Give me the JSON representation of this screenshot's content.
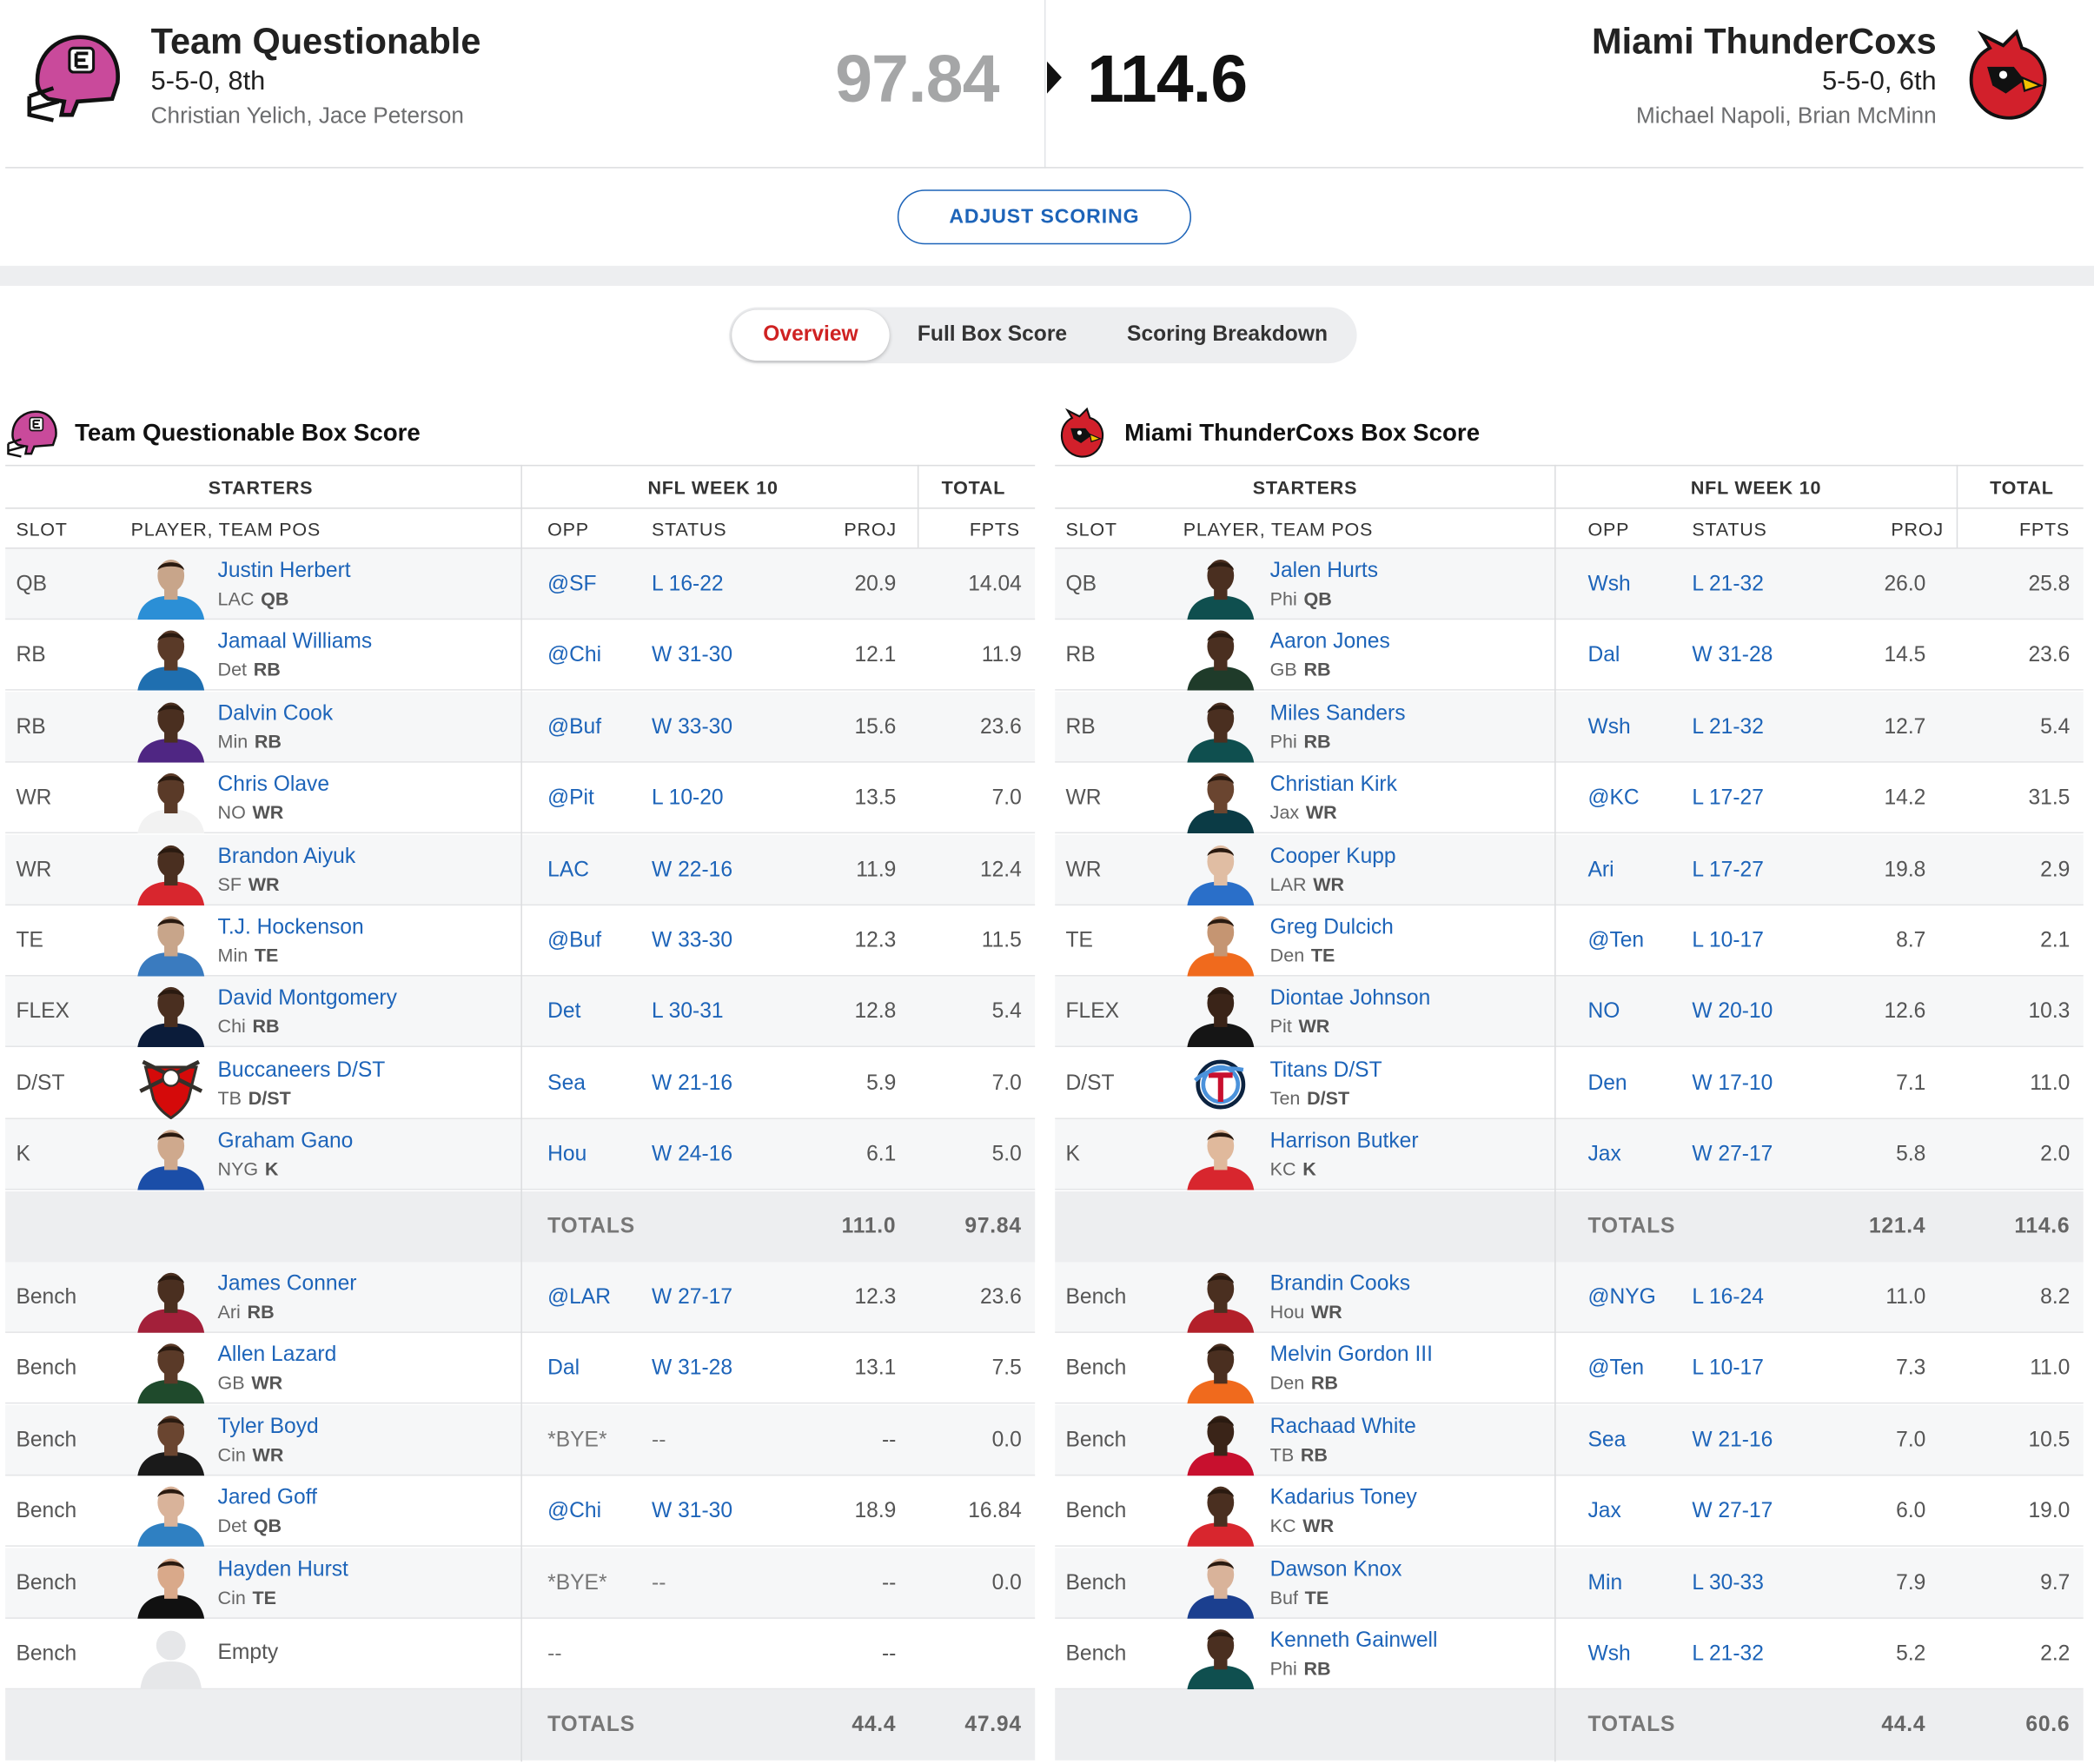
{
  "matchup": {
    "away": {
      "name": "Team Questionable",
      "record": "5-5-0, 8th",
      "owners": "Christian Yelich, Jace Peterson",
      "score": "97.84"
    },
    "home": {
      "name": "Miami ThunderCoxs",
      "record": "5-5-0, 6th",
      "owners": "Michael Napoli, Brian McMinn",
      "score": "114.6"
    },
    "adjust_label": "ADJUST SCORING"
  },
  "tabs": {
    "overview": "Overview",
    "full": "Full Box Score",
    "breakdown": "Scoring Breakdown"
  },
  "headers": {
    "starters": "STARTERS",
    "week": "NFL WEEK 10",
    "total": "TOTAL",
    "slot": "SLOT",
    "player": "PLAYER, TEAM POS",
    "opp": "OPP",
    "status": "STATUS",
    "proj": "PROJ",
    "fpts": "FPTS",
    "totals": "TOTALS"
  },
  "colors": {
    "link": "#1d64b9",
    "active_tab": "#cf2222",
    "away_helmet": "#c94a9b",
    "home_bird": "#d2202b"
  },
  "left": {
    "title": "Team Questionable Box Score",
    "starters": [
      {
        "slot": "QB",
        "name": "Justin Herbert",
        "team": "LAC",
        "pos": "QB",
        "opp": "@SF",
        "status": "L 16-22",
        "proj": "20.9",
        "fpts": "14.04",
        "skin": "#c8a58a",
        "jersey": "#2b8fd6"
      },
      {
        "slot": "RB",
        "name": "Jamaal Williams",
        "team": "Det",
        "pos": "RB",
        "opp": "@Chi",
        "status": "W 31-30",
        "proj": "12.1",
        "fpts": "11.9",
        "skin": "#5a3a28",
        "jersey": "#1f6fb0"
      },
      {
        "slot": "RB",
        "name": "Dalvin Cook",
        "team": "Min",
        "pos": "RB",
        "opp": "@Buf",
        "status": "W 33-30",
        "proj": "15.6",
        "fpts": "23.6",
        "skin": "#4a2f20",
        "jersey": "#4f2683"
      },
      {
        "slot": "WR",
        "name": "Chris Olave",
        "team": "NO",
        "pos": "WR",
        "opp": "@Pit",
        "status": "L 10-20",
        "proj": "13.5",
        "fpts": "7.0",
        "skin": "#5a3a28",
        "jersey": "#f2f2f2"
      },
      {
        "slot": "WR",
        "name": "Brandon Aiyuk",
        "team": "SF",
        "pos": "WR",
        "opp": "LAC",
        "status": "W 22-16",
        "proj": "11.9",
        "fpts": "12.4",
        "skin": "#4a2f20",
        "jersey": "#d8262e"
      },
      {
        "slot": "TE",
        "name": "T.J. Hockenson",
        "team": "Min",
        "pos": "TE",
        "opp": "@Buf",
        "status": "W 33-30",
        "proj": "12.3",
        "fpts": "11.5",
        "skin": "#c8a58a",
        "jersey": "#3a7bbf"
      },
      {
        "slot": "FLEX",
        "name": "David Montgomery",
        "team": "Chi",
        "pos": "RB",
        "opp": "Det",
        "status": "L 30-31",
        "proj": "12.8",
        "fpts": "5.4",
        "skin": "#4a2f20",
        "jersey": "#0b1c3a"
      },
      {
        "slot": "D/ST",
        "name": "Buccaneers D/ST",
        "team": "TB",
        "pos": "D/ST",
        "opp": "Sea",
        "status": "W 21-16",
        "proj": "5.9",
        "fpts": "7.0",
        "logo": "bucs"
      },
      {
        "slot": "K",
        "name": "Graham Gano",
        "team": "NYG",
        "pos": "K",
        "opp": "Hou",
        "status": "W 24-16",
        "proj": "6.1",
        "fpts": "5.0",
        "skin": "#cfa98d",
        "jersey": "#1b4ea8"
      }
    ],
    "starter_totals": {
      "proj": "111.0",
      "fpts": "97.84"
    },
    "bench": [
      {
        "slot": "Bench",
        "name": "James Conner",
        "team": "Ari",
        "pos": "RB",
        "opp": "@LAR",
        "status": "W 27-17",
        "proj": "12.3",
        "fpts": "23.6",
        "skin": "#4a2f20",
        "jersey": "#a3203a"
      },
      {
        "slot": "Bench",
        "name": "Allen Lazard",
        "team": "GB",
        "pos": "WR",
        "opp": "Dal",
        "status": "W 31-28",
        "proj": "13.1",
        "fpts": "7.5",
        "skin": "#5a3a28",
        "jersey": "#1f4a2c"
      },
      {
        "slot": "Bench",
        "name": "Tyler Boyd",
        "team": "Cin",
        "pos": "WR",
        "opp": "*BYE*",
        "status": "--",
        "proj": "--",
        "fpts": "0.0",
        "skin": "#6a4530",
        "jersey": "#1a1a1a",
        "plain": true
      },
      {
        "slot": "Bench",
        "name": "Jared Goff",
        "team": "Det",
        "pos": "QB",
        "opp": "@Chi",
        "status": "W 31-30",
        "proj": "18.9",
        "fpts": "16.84",
        "skin": "#d9b39a",
        "jersey": "#2f80c2"
      },
      {
        "slot": "Bench",
        "name": "Hayden Hurst",
        "team": "Cin",
        "pos": "TE",
        "opp": "*BYE*",
        "status": "--",
        "proj": "--",
        "fpts": "0.0",
        "skin": "#d9a98a",
        "jersey": "#111111",
        "plain": true
      },
      {
        "slot": "Bench",
        "name": "Empty",
        "team": "",
        "pos": "",
        "opp": "--",
        "status": "",
        "proj": "--",
        "fpts": "",
        "empty": true
      }
    ],
    "bench_totals": {
      "proj": "44.4",
      "fpts": "47.94"
    }
  },
  "right": {
    "title": "Miami ThunderCoxs Box Score",
    "starters": [
      {
        "slot": "QB",
        "name": "Jalen Hurts",
        "team": "Phi",
        "pos": "QB",
        "opp": "Wsh",
        "status": "L 21-32",
        "proj": "26.0",
        "fpts": "25.8",
        "skin": "#4a2f20",
        "jersey": "#0f4f4f"
      },
      {
        "slot": "RB",
        "name": "Aaron Jones",
        "team": "GB",
        "pos": "RB",
        "opp": "Dal",
        "status": "W 31-28",
        "proj": "14.5",
        "fpts": "23.6",
        "skin": "#4a2f20",
        "jersey": "#1f3b2a"
      },
      {
        "slot": "RB",
        "name": "Miles Sanders",
        "team": "Phi",
        "pos": "RB",
        "opp": "Wsh",
        "status": "L 21-32",
        "proj": "12.7",
        "fpts": "5.4",
        "skin": "#4a2f20",
        "jersey": "#0f4f4f"
      },
      {
        "slot": "WR",
        "name": "Christian Kirk",
        "team": "Jax",
        "pos": "WR",
        "opp": "@KC",
        "status": "L 17-27",
        "proj": "14.2",
        "fpts": "31.5",
        "skin": "#6a4530",
        "jersey": "#0b3b45"
      },
      {
        "slot": "WR",
        "name": "Cooper Kupp",
        "team": "LAR",
        "pos": "WR",
        "opp": "Ari",
        "status": "L 17-27",
        "proj": "19.8",
        "fpts": "2.9",
        "skin": "#e0bda3",
        "jersey": "#2a6fc9"
      },
      {
        "slot": "TE",
        "name": "Greg Dulcich",
        "team": "Den",
        "pos": "TE",
        "opp": "@Ten",
        "status": "L 10-17",
        "proj": "8.7",
        "fpts": "2.1",
        "skin": "#c59572",
        "jersey": "#f06a1d"
      },
      {
        "slot": "FLEX",
        "name": "Diontae Johnson",
        "team": "Pit",
        "pos": "WR",
        "opp": "NO",
        "status": "W 20-10",
        "proj": "12.6",
        "fpts": "10.3",
        "skin": "#3a2418",
        "jersey": "#151515"
      },
      {
        "slot": "D/ST",
        "name": "Titans D/ST",
        "team": "Ten",
        "pos": "D/ST",
        "opp": "Den",
        "status": "W 17-10",
        "proj": "7.1",
        "fpts": "11.0",
        "logo": "titans"
      },
      {
        "slot": "K",
        "name": "Harrison Butker",
        "team": "KC",
        "pos": "K",
        "opp": "Jax",
        "status": "W 27-17",
        "proj": "5.8",
        "fpts": "2.0",
        "skin": "#e0b99c",
        "jersey": "#d8262e"
      }
    ],
    "starter_totals": {
      "proj": "121.4",
      "fpts": "114.6"
    },
    "bench": [
      {
        "slot": "Bench",
        "name": "Brandin Cooks",
        "team": "Hou",
        "pos": "WR",
        "opp": "@NYG",
        "status": "L 16-24",
        "proj": "11.0",
        "fpts": "8.2",
        "skin": "#4a2f20",
        "jersey": "#b3202a"
      },
      {
        "slot": "Bench",
        "name": "Melvin Gordon III",
        "team": "Den",
        "pos": "RB",
        "opp": "@Ten",
        "status": "L 10-17",
        "proj": "7.3",
        "fpts": "11.0",
        "skin": "#4a2f20",
        "jersey": "#f06a1d"
      },
      {
        "slot": "Bench",
        "name": "Rachaad White",
        "team": "TB",
        "pos": "RB",
        "opp": "Sea",
        "status": "W 21-16",
        "proj": "7.0",
        "fpts": "10.5",
        "skin": "#3a2418",
        "jersey": "#c8102e"
      },
      {
        "slot": "Bench",
        "name": "Kadarius Toney",
        "team": "KC",
        "pos": "WR",
        "opp": "Jax",
        "status": "W 27-17",
        "proj": "6.0",
        "fpts": "19.0",
        "skin": "#4a2f20",
        "jersey": "#d8262e"
      },
      {
        "slot": "Bench",
        "name": "Dawson Knox",
        "team": "Buf",
        "pos": "TE",
        "opp": "Min",
        "status": "L 30-33",
        "proj": "7.9",
        "fpts": "9.7",
        "skin": "#d9b39a",
        "jersey": "#1b3f8f"
      },
      {
        "slot": "Bench",
        "name": "Kenneth Gainwell",
        "team": "Phi",
        "pos": "RB",
        "opp": "Wsh",
        "status": "L 21-32",
        "proj": "5.2",
        "fpts": "2.2",
        "skin": "#4a2f20",
        "jersey": "#0f4f4f"
      }
    ],
    "bench_totals": {
      "proj": "44.4",
      "fpts": "60.6"
    }
  }
}
